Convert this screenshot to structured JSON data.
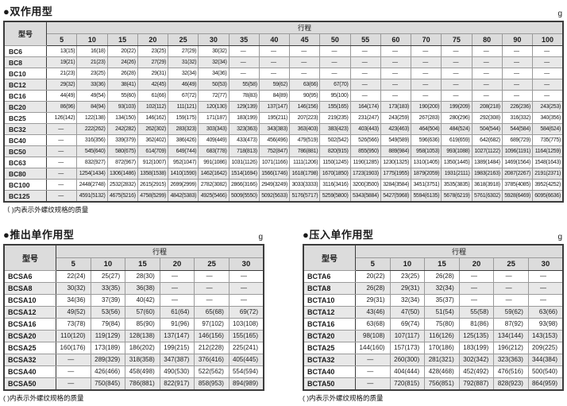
{
  "double_acting": {
    "title": "●双作用型",
    "unit": "g",
    "col_header": "型号",
    "stroke_header": "行程",
    "strokes": [
      "5",
      "10",
      "15",
      "20",
      "25",
      "30",
      "35",
      "40",
      "45",
      "50",
      "55",
      "60",
      "70",
      "75",
      "80",
      "90",
      "100"
    ],
    "rows": [
      {
        "model": "BC6",
        "values": [
          "13(15)",
          "16(18)",
          "20(22)",
          "23(25)",
          "27(29)",
          "30(32)",
          "—",
          "—",
          "—",
          "—",
          "—",
          "—",
          "—",
          "—",
          "—",
          "—",
          "—"
        ]
      },
      {
        "model": "BC8",
        "values": [
          "19(21)",
          "21(23)",
          "24(26)",
          "27(29)",
          "31(32)",
          "32(34)",
          "—",
          "—",
          "—",
          "—",
          "—",
          "—",
          "—",
          "—",
          "—",
          "—",
          "—"
        ]
      },
      {
        "model": "BC10",
        "values": [
          "21(23)",
          "23(25)",
          "26(28)",
          "29(31)",
          "32(34)",
          "34(36)",
          "—",
          "—",
          "—",
          "—",
          "—",
          "—",
          "—",
          "—",
          "—",
          "—",
          "—"
        ]
      },
      {
        "model": "BC12",
        "values": [
          "29(32)",
          "33(36)",
          "38(41)",
          "42(45)",
          "46(49)",
          "50(53)",
          "55(58)",
          "59(62)",
          "63(66)",
          "67(70)",
          "—",
          "—",
          "—",
          "—",
          "—",
          "—",
          "—"
        ]
      },
      {
        "model": "BC16",
        "values": [
          "44(49)",
          "49(54)",
          "55(60)",
          "61(66)",
          "67(72)",
          "72(77)",
          "78(83)",
          "84(89)",
          "90(95)",
          "95(100)",
          "—",
          "—",
          "—",
          "—",
          "—",
          "—",
          "—"
        ]
      },
      {
        "model": "BC20",
        "values": [
          "86(96)",
          "84(94)",
          "93(103)",
          "102(112)",
          "111(121)",
          "120(130)",
          "129(139)",
          "137(147)",
          "146(156)",
          "155(165)",
          "164(174)",
          "173(183)",
          "190(200)",
          "199(209)",
          "208(218)",
          "226(236)",
          "243(253)"
        ]
      },
      {
        "model": "BC25",
        "values": [
          "126(142)",
          "122(138)",
          "134(150)",
          "146(162)",
          "159(175)",
          "171(187)",
          "183(199)",
          "195(211)",
          "207(223)",
          "219(235)",
          "231(247)",
          "243(259)",
          "267(283)",
          "280(296)",
          "292(308)",
          "316(332)",
          "340(356)"
        ]
      },
      {
        "model": "BC32",
        "values": [
          "—",
          "222(262)",
          "242(282)",
          "262(302)",
          "283(323)",
          "303(343)",
          "323(363)",
          "343(383)",
          "363(403)",
          "383(423)",
          "403(443)",
          "423(463)",
          "464(504)",
          "484(524)",
          "504(544)",
          "544(584)",
          "584(624)"
        ]
      },
      {
        "model": "BC40",
        "values": [
          "—",
          "316(356)",
          "339(379)",
          "362(402)",
          "386(426)",
          "409(449)",
          "433(473)",
          "456(496)",
          "479(519)",
          "502(542)",
          "526(566)",
          "549(589)",
          "596(636)",
          "619(659)",
          "642(682)",
          "689(729)",
          "735(775)"
        ]
      },
      {
        "model": "BC50",
        "values": [
          "—",
          "545(640)",
          "580(675)",
          "614(709)",
          "649(744)",
          "683(778)",
          "718(813)",
          "752(847)",
          "786(881)",
          "820(915)",
          "855(950)",
          "889(984)",
          "958(1053)",
          "993(1088)",
          "1027(1122)",
          "1096(1191)",
          "1164(1259)"
        ]
      },
      {
        "model": "BC63",
        "values": [
          "—",
          "832(927)",
          "872(967)",
          "912(1007)",
          "952(1047)",
          "991(1086)",
          "1031(1126)",
          "1071(1166)",
          "1111(1206)",
          "1150(1245)",
          "1190(1285)",
          "1230(1325)",
          "1310(1405)",
          "1350(1445)",
          "1389(1484)",
          "1469(1564)",
          "1548(1643)"
        ]
      },
      {
        "model": "BC80",
        "values": [
          "—",
          "1254(1434)",
          "1306(1486)",
          "1358(1538)",
          "1410(1590)",
          "1462(1642)",
          "1514(1694)",
          "1566(1746)",
          "1618(1798)",
          "1670(1850)",
          "1723(1903)",
          "1775(1955)",
          "1879(2059)",
          "1931(2111)",
          "1983(2163)",
          "2087(2267)",
          "2191(2371)"
        ]
      },
      {
        "model": "BC100",
        "values": [
          "—",
          "2448(2748)",
          "2532(2832)",
          "2615(2915)",
          "2699(2999)",
          "2782(3082)",
          "2866(3166)",
          "2949(3249)",
          "3033(3333)",
          "3116(3416)",
          "3200(3500)",
          "3284(3584)",
          "3451(3751)",
          "3535(3835)",
          "3618(3918)",
          "3785(4085)",
          "3952(4252)"
        ]
      },
      {
        "model": "BC125",
        "values": [
          "—",
          "4591(5132)",
          "4675(5216)",
          "4758(5299)",
          "4842(5383)",
          "4925(5466)",
          "5009(5550)",
          "5092(5633)",
          "5176(5717)",
          "5259(5800)",
          "5343(5884)",
          "5427(5968)",
          "5594(6135)",
          "5678(6219)",
          "5761(6302)",
          "5928(6469)",
          "6095(6636)"
        ]
      }
    ],
    "footnote": "（ )内表示外螺纹规格的质量"
  },
  "push_single": {
    "title": "●推出单作用型",
    "unit": "g",
    "col_header": "型号",
    "stroke_header": "行程",
    "strokes": [
      "5",
      "10",
      "15",
      "20",
      "25",
      "30"
    ],
    "rows": [
      {
        "model": "BCSA6",
        "values": [
          "22(24)",
          "25(27)",
          "28(30)",
          "—",
          "—",
          "—"
        ]
      },
      {
        "model": "BCSA8",
        "values": [
          "30(32)",
          "33(35)",
          "36(38)",
          "—",
          "—",
          "—"
        ]
      },
      {
        "model": "BCSA10",
        "values": [
          "34(36)",
          "37(39)",
          "40(42)",
          "—",
          "—",
          "—"
        ]
      },
      {
        "model": "BCSA12",
        "values": [
          "49(52)",
          "53(56)",
          "57(60)",
          "61(64)",
          "65(68)",
          "69(72)"
        ]
      },
      {
        "model": "BCSA16",
        "values": [
          "73(78)",
          "79(84)",
          "85(90)",
          "91(96)",
          "97(102)",
          "103(108)"
        ]
      },
      {
        "model": "BCSA20",
        "values": [
          "110(120)",
          "119(129)",
          "128(138)",
          "137(147)",
          "146(156)",
          "155(165)"
        ]
      },
      {
        "model": "BCSA25",
        "values": [
          "160(176)",
          "173(189)",
          "186(202)",
          "199(215)",
          "212(228)",
          "225(241)"
        ]
      },
      {
        "model": "BCSA32",
        "values": [
          "—",
          "289(329)",
          "318(358)",
          "347(387)",
          "376(416)",
          "405(445)"
        ]
      },
      {
        "model": "BCSA40",
        "values": [
          "—",
          "426(466)",
          "458(498)",
          "490(530)",
          "522(562)",
          "554(594)"
        ]
      },
      {
        "model": "BCSA50",
        "values": [
          "—",
          "750(845)",
          "786(881)",
          "822(917)",
          "858(953)",
          "894(989)"
        ]
      }
    ],
    "footnote": "( )内表示外螺纹规格的质量"
  },
  "press_single": {
    "title": "●压入单作用型",
    "unit": "g",
    "col_header": "型号",
    "stroke_header": "行程",
    "strokes": [
      "5",
      "10",
      "15",
      "20",
      "25",
      "30"
    ],
    "rows": [
      {
        "model": "BCTA6",
        "values": [
          "20(22)",
          "23(25)",
          "26(28)",
          "—",
          "—",
          "—"
        ]
      },
      {
        "model": "BCTA8",
        "values": [
          "26(28)",
          "29(31)",
          "32(34)",
          "—",
          "—",
          "—"
        ]
      },
      {
        "model": "BCTA10",
        "values": [
          "29(31)",
          "32(34)",
          "35(37)",
          "—",
          "—",
          "—"
        ]
      },
      {
        "model": "BCTA12",
        "values": [
          "43(46)",
          "47(50)",
          "51(54)",
          "55(58)",
          "59(62)",
          "63(66)"
        ]
      },
      {
        "model": "BCTA16",
        "values": [
          "63(68)",
          "69(74)",
          "75(80)",
          "81(86)",
          "87(92)",
          "93(98)"
        ]
      },
      {
        "model": "BCTA20",
        "values": [
          "98(108)",
          "107(117)",
          "116(126)",
          "125(135)",
          "134(144)",
          "143(153)"
        ]
      },
      {
        "model": "BCTA25",
        "values": [
          "144(160)",
          "157(173)",
          "170(186)",
          "183(199)",
          "196(212)",
          "209(225)"
        ]
      },
      {
        "model": "BCTA32",
        "values": [
          "—",
          "260(300)",
          "281(321)",
          "302(342)",
          "323(363)",
          "344(384)"
        ]
      },
      {
        "model": "BCTA40",
        "values": [
          "—",
          "404(444)",
          "428(468)",
          "452(492)",
          "476(516)",
          "500(540)"
        ]
      },
      {
        "model": "BCTA50",
        "values": [
          "—",
          "720(815)",
          "756(851)",
          "792(887)",
          "828(923)",
          "864(959)"
        ]
      }
    ],
    "footnote": "( )内表示外螺纹规格的质量"
  }
}
